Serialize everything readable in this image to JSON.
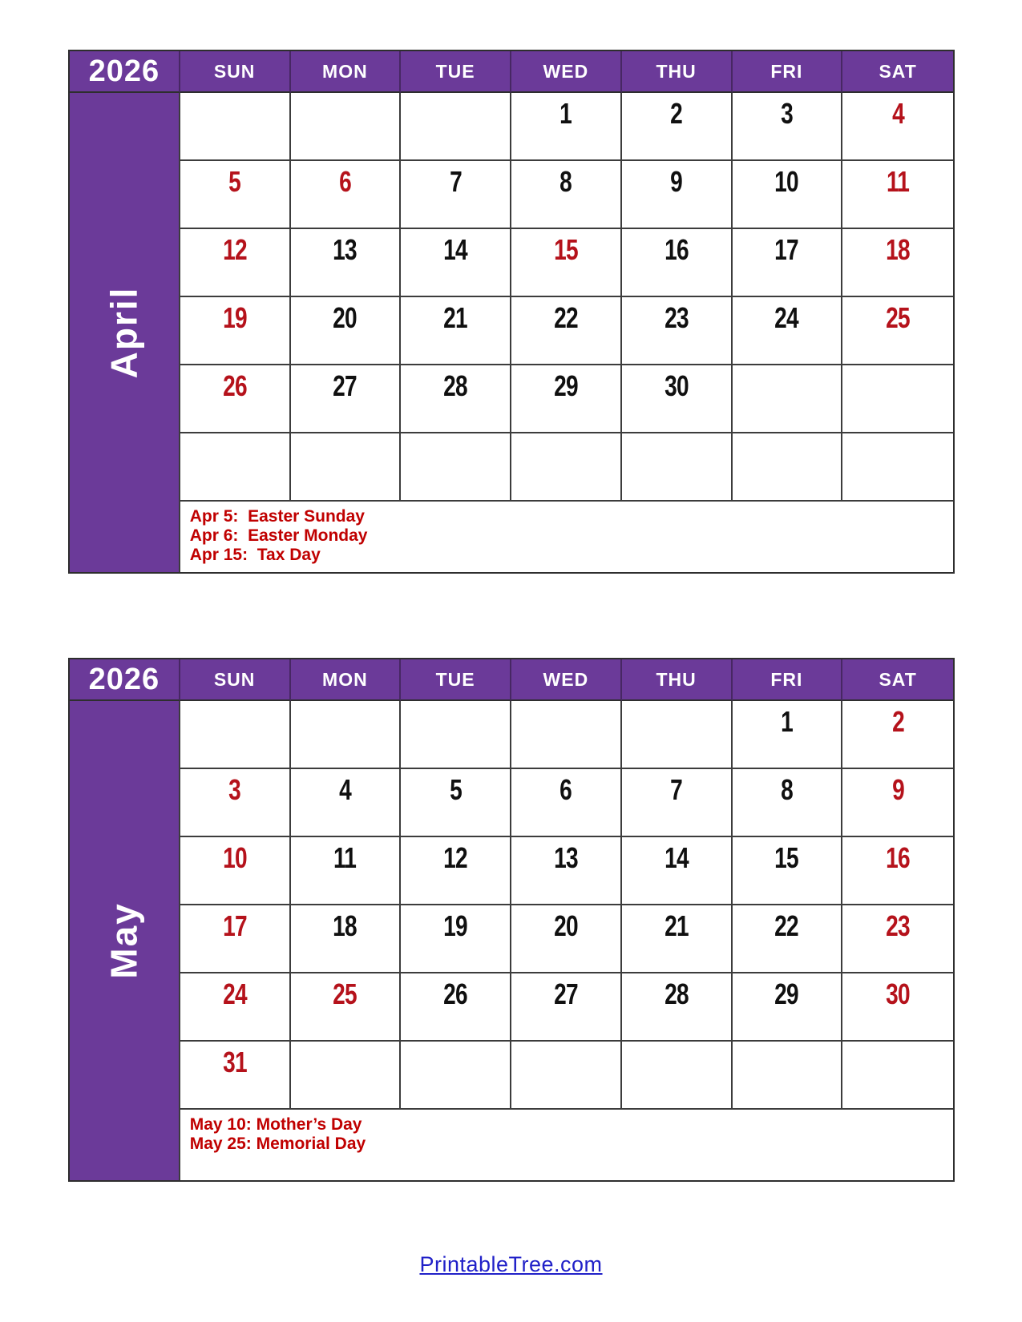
{
  "colors": {
    "purple": "#6B3A99",
    "date_red": "#B5121B",
    "note_red": "#C00000",
    "date_black": "#101010",
    "grid_border": "#3c3c3c",
    "link_blue": "#2121C8"
  },
  "calendars": [
    {
      "month": "April",
      "year": "2026",
      "day_headers": [
        "SUN",
        "MON",
        "TUE",
        "WED",
        "THU",
        "FRI",
        "SAT"
      ],
      "weeks": [
        [
          {
            "n": "",
            "red": false
          },
          {
            "n": "",
            "red": false
          },
          {
            "n": "",
            "red": false
          },
          {
            "n": "1",
            "red": false
          },
          {
            "n": "2",
            "red": false
          },
          {
            "n": "3",
            "red": false
          },
          {
            "n": "4",
            "red": true
          }
        ],
        [
          {
            "n": "5",
            "red": true
          },
          {
            "n": "6",
            "red": true
          },
          {
            "n": "7",
            "red": false
          },
          {
            "n": "8",
            "red": false
          },
          {
            "n": "9",
            "red": false
          },
          {
            "n": "10",
            "red": false
          },
          {
            "n": "11",
            "red": true
          }
        ],
        [
          {
            "n": "12",
            "red": true
          },
          {
            "n": "13",
            "red": false
          },
          {
            "n": "14",
            "red": false
          },
          {
            "n": "15",
            "red": true
          },
          {
            "n": "16",
            "red": false
          },
          {
            "n": "17",
            "red": false
          },
          {
            "n": "18",
            "red": true
          }
        ],
        [
          {
            "n": "19",
            "red": true
          },
          {
            "n": "20",
            "red": false
          },
          {
            "n": "21",
            "red": false
          },
          {
            "n": "22",
            "red": false
          },
          {
            "n": "23",
            "red": false
          },
          {
            "n": "24",
            "red": false
          },
          {
            "n": "25",
            "red": true
          }
        ],
        [
          {
            "n": "26",
            "red": true
          },
          {
            "n": "27",
            "red": false
          },
          {
            "n": "28",
            "red": false
          },
          {
            "n": "29",
            "red": false
          },
          {
            "n": "30",
            "red": false
          },
          {
            "n": "",
            "red": false
          },
          {
            "n": "",
            "red": false
          }
        ],
        [
          {
            "n": "",
            "red": false
          },
          {
            "n": "",
            "red": false
          },
          {
            "n": "",
            "red": false
          },
          {
            "n": "",
            "red": false
          },
          {
            "n": "",
            "red": false
          },
          {
            "n": "",
            "red": false
          },
          {
            "n": "",
            "red": false
          }
        ]
      ],
      "holidays": [
        "Apr 5:  Easter Sunday",
        "Apr 6:  Easter Monday",
        "Apr 15:  Tax Day"
      ]
    },
    {
      "month": "May",
      "year": "2026",
      "day_headers": [
        "SUN",
        "MON",
        "TUE",
        "WED",
        "THU",
        "FRI",
        "SAT"
      ],
      "weeks": [
        [
          {
            "n": "",
            "red": false
          },
          {
            "n": "",
            "red": false
          },
          {
            "n": "",
            "red": false
          },
          {
            "n": "",
            "red": false
          },
          {
            "n": "",
            "red": false
          },
          {
            "n": "1",
            "red": false
          },
          {
            "n": "2",
            "red": true
          }
        ],
        [
          {
            "n": "3",
            "red": true
          },
          {
            "n": "4",
            "red": false
          },
          {
            "n": "5",
            "red": false
          },
          {
            "n": "6",
            "red": false
          },
          {
            "n": "7",
            "red": false
          },
          {
            "n": "8",
            "red": false
          },
          {
            "n": "9",
            "red": true
          }
        ],
        [
          {
            "n": "10",
            "red": true
          },
          {
            "n": "11",
            "red": false
          },
          {
            "n": "12",
            "red": false
          },
          {
            "n": "13",
            "red": false
          },
          {
            "n": "14",
            "red": false
          },
          {
            "n": "15",
            "red": false
          },
          {
            "n": "16",
            "red": true
          }
        ],
        [
          {
            "n": "17",
            "red": true
          },
          {
            "n": "18",
            "red": false
          },
          {
            "n": "19",
            "red": false
          },
          {
            "n": "20",
            "red": false
          },
          {
            "n": "21",
            "red": false
          },
          {
            "n": "22",
            "red": false
          },
          {
            "n": "23",
            "red": true
          }
        ],
        [
          {
            "n": "24",
            "red": true
          },
          {
            "n": "25",
            "red": true
          },
          {
            "n": "26",
            "red": false
          },
          {
            "n": "27",
            "red": false
          },
          {
            "n": "28",
            "red": false
          },
          {
            "n": "29",
            "red": false
          },
          {
            "n": "30",
            "red": true
          }
        ],
        [
          {
            "n": "31",
            "red": true
          },
          {
            "n": "",
            "red": false
          },
          {
            "n": "",
            "red": false
          },
          {
            "n": "",
            "red": false
          },
          {
            "n": "",
            "red": false
          },
          {
            "n": "",
            "red": false
          },
          {
            "n": "",
            "red": false
          }
        ]
      ],
      "holidays": [
        "May 10: Mother’s Day",
        "May 25: Memorial Day"
      ]
    }
  ],
  "footer": {
    "link": "PrintableTree.com"
  }
}
